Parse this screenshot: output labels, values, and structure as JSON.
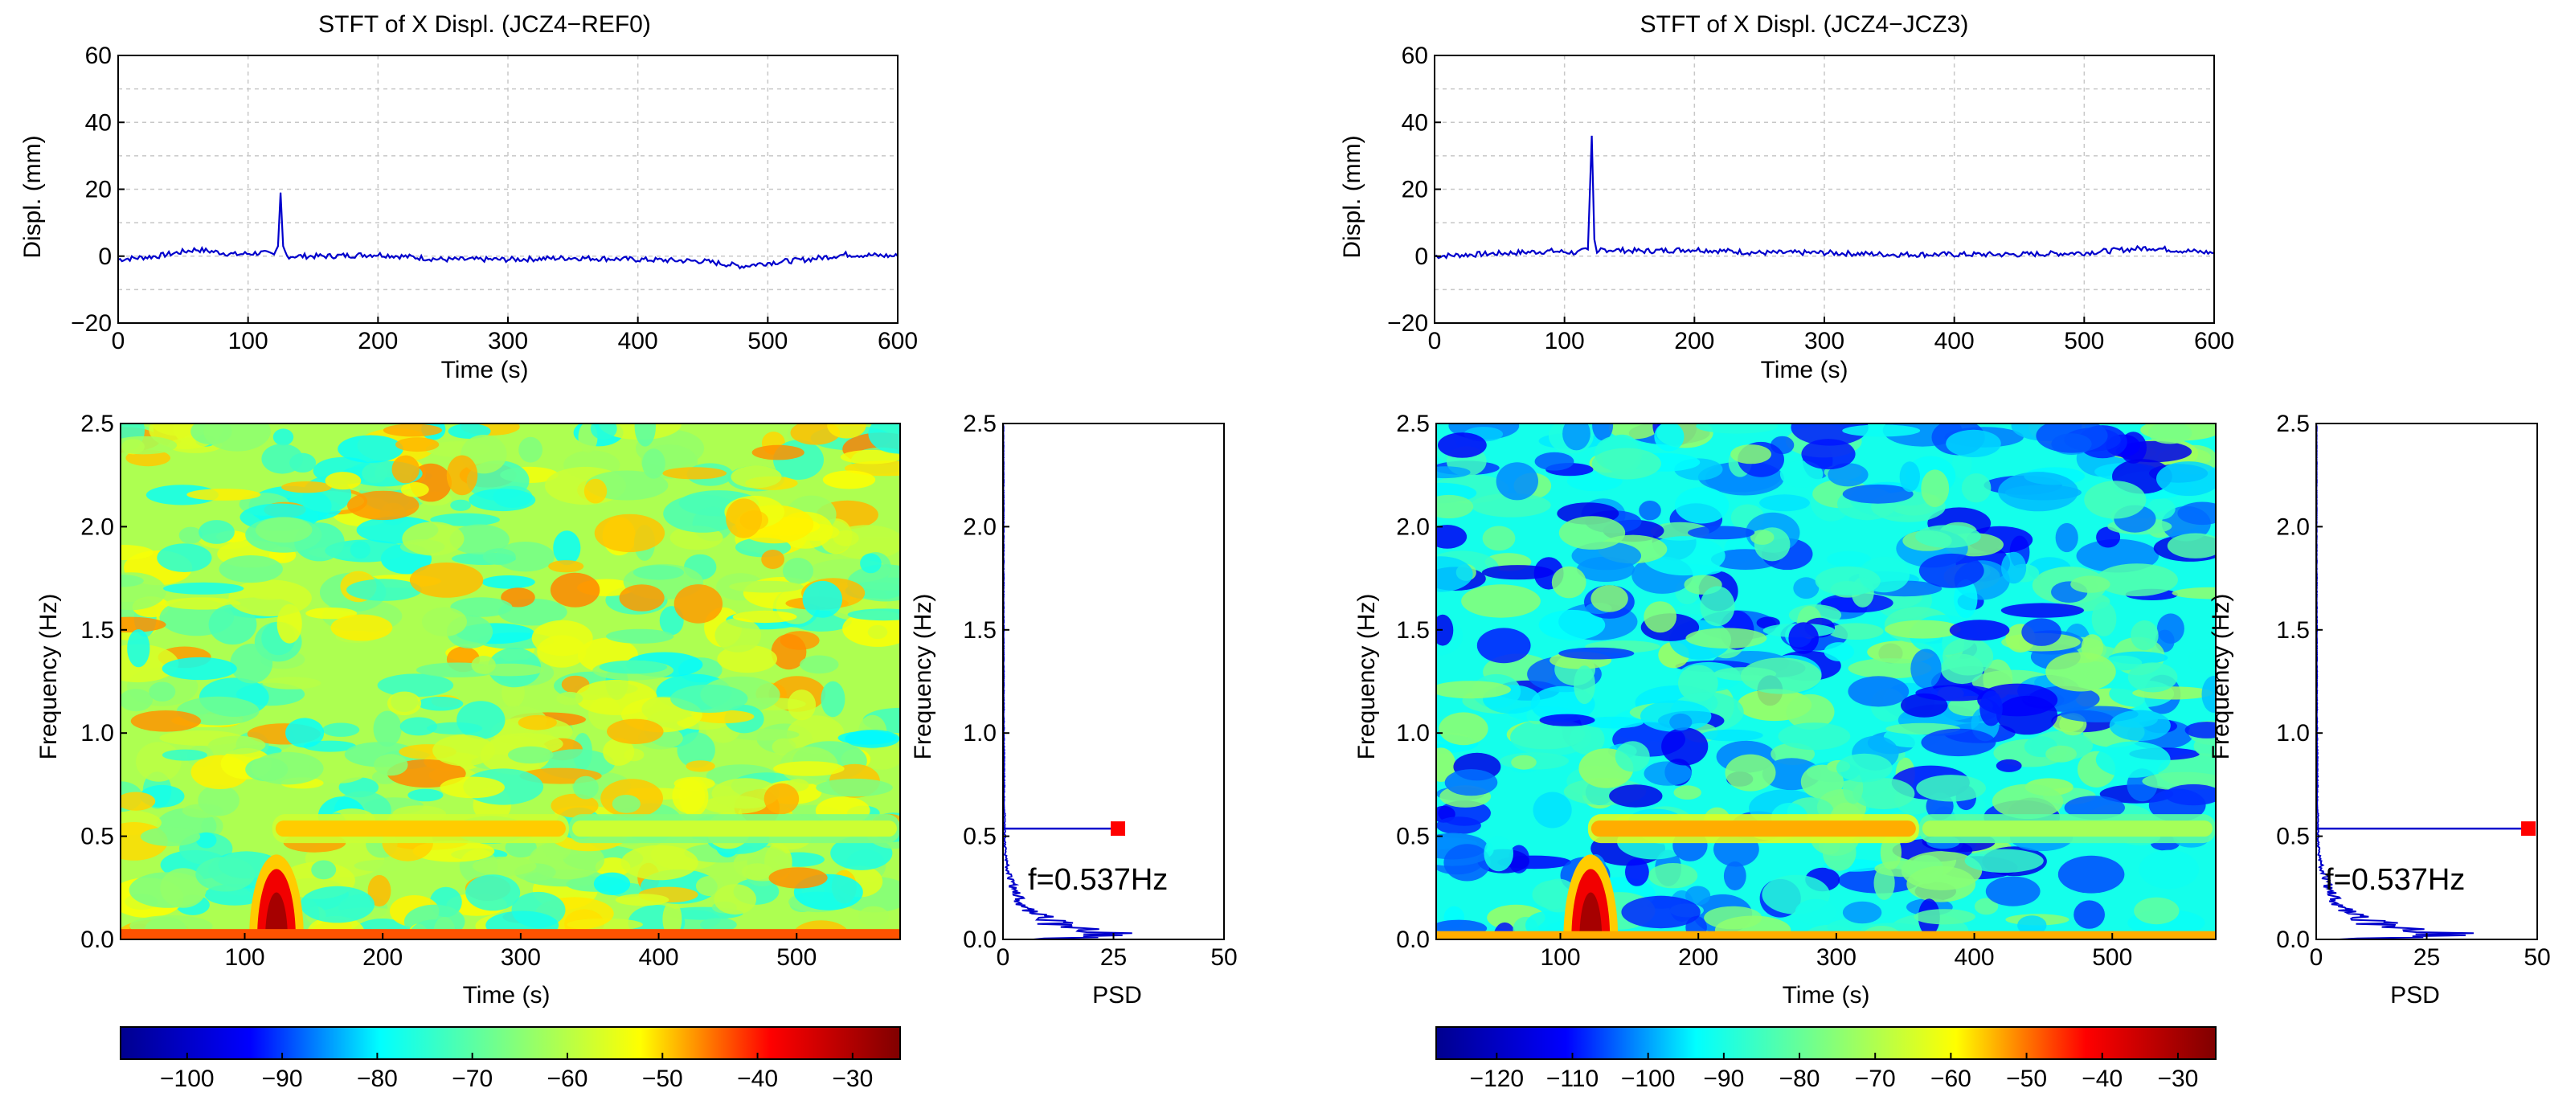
{
  "colormap": [
    "#00008f",
    "#0000ff",
    "#00ffff",
    "#7fff7f",
    "#ffff00",
    "#ff0000",
    "#800000"
  ],
  "chart_data": [
    {
      "id": "left-time",
      "type": "line",
      "title": "STFT of X Displ. (JCZ4−REF0)",
      "xlabel": "Time (s)",
      "ylabel": "Displ. (mm)",
      "xlim": [
        0,
        600
      ],
      "ylim": [
        -20,
        60
      ],
      "xticks": [
        "0",
        "100",
        "200",
        "300",
        "400",
        "500",
        "600"
      ],
      "yticks": [
        "−20",
        "0",
        "20",
        "40",
        "60"
      ],
      "grid": true,
      "line_color": "#0000cc",
      "series": [
        {
          "name": "X displacement",
          "x": [
            0,
            30,
            60,
            90,
            110,
            120,
            123,
            125,
            127,
            130,
            160,
            200,
            250,
            300,
            350,
            400,
            450,
            480,
            500,
            530,
            560,
            600
          ],
          "y": [
            -1,
            0,
            2,
            0.5,
            1,
            0.5,
            3,
            19,
            3,
            0,
            0,
            0.5,
            -1,
            -1,
            -0.5,
            -1,
            -1.5,
            -3,
            -2,
            -1,
            0.5,
            0
          ]
        }
      ]
    },
    {
      "id": "right-time",
      "type": "line",
      "title": "STFT of X Displ. (JCZ4−JCZ3)",
      "xlabel": "Time (s)",
      "ylabel": "Displ. (mm)",
      "xlim": [
        0,
        600
      ],
      "ylim": [
        -20,
        60
      ],
      "xticks": [
        "0",
        "100",
        "200",
        "300",
        "400",
        "500",
        "600"
      ],
      "yticks": [
        "−20",
        "0",
        "20",
        "40",
        "60"
      ],
      "grid": true,
      "line_color": "#0000cc",
      "series": [
        {
          "name": "X displacement",
          "x": [
            0,
            30,
            60,
            90,
            110,
            118,
            121,
            123,
            125,
            128,
            160,
            200,
            250,
            300,
            350,
            400,
            450,
            500,
            550,
            580,
            600
          ],
          "y": [
            0,
            0.5,
            1,
            1.5,
            1,
            2,
            36,
            5,
            1,
            2,
            1.5,
            2,
            1,
            1,
            0.5,
            0.5,
            0.5,
            1,
            2.5,
            1.5,
            1
          ]
        }
      ]
    },
    {
      "id": "left-spectrogram",
      "type": "heatmap",
      "xlabel": "Time (s)",
      "ylabel": "Frequency (Hz)",
      "xlim": [
        10,
        575
      ],
      "ylim": [
        0,
        2.5
      ],
      "xticks": [
        "100",
        "200",
        "300",
        "400",
        "500"
      ],
      "yticks": [
        "0.0",
        "0.5",
        "1.0",
        "1.5",
        "2.0",
        "2.5"
      ],
      "background_level": 0.56,
      "features": [
        {
          "kind": "band",
          "freq": 0.537,
          "t_start": 120,
          "t_end": 335,
          "level": 0.7
        },
        {
          "kind": "band",
          "freq": 0.537,
          "t_start": 335,
          "t_end": 575,
          "level": 0.6
        },
        {
          "kind": "burst",
          "t_center": 123,
          "f_top": 0.38,
          "level": 0.95
        },
        {
          "kind": "low-frequency floor",
          "f_top": 0.05,
          "level": 0.78
        }
      ]
    },
    {
      "id": "right-spectrogram",
      "type": "heatmap",
      "xlabel": "Time (s)",
      "ylabel": "Frequency (Hz)",
      "xlim": [
        10,
        575
      ],
      "ylim": [
        0,
        2.5
      ],
      "xticks": [
        "100",
        "200",
        "300",
        "400",
        "500"
      ],
      "yticks": [
        "0.0",
        "0.5",
        "1.0",
        "1.5",
        "2.0",
        "2.5"
      ],
      "background_level": 0.36,
      "features": [
        {
          "kind": "band",
          "freq": 0.537,
          "t_start": 120,
          "t_end": 360,
          "level": 0.72
        },
        {
          "kind": "band",
          "freq": 0.537,
          "t_start": 360,
          "t_end": 575,
          "level": 0.55
        },
        {
          "kind": "burst",
          "t_center": 122,
          "f_top": 0.38,
          "level": 0.95
        },
        {
          "kind": "low-frequency floor",
          "f_top": 0.04,
          "level": 0.72
        }
      ]
    },
    {
      "id": "left-psd",
      "type": "line",
      "xlabel": "PSD",
      "ylabel": "Frequency (Hz)",
      "xlim": [
        0,
        50
      ],
      "ylim": [
        0,
        2.5
      ],
      "xticks": [
        "0",
        "25",
        "50"
      ],
      "yticks": [
        "0.0",
        "0.5",
        "1.0",
        "1.5",
        "2.0",
        "2.5"
      ],
      "series": [
        {
          "name": "PSD",
          "freq": [
            0.0,
            0.02,
            0.05,
            0.08,
            0.1,
            0.13,
            0.16,
            0.2,
            0.25,
            0.3,
            0.35,
            0.4,
            0.5,
            0.7,
            1.0,
            1.5,
            2.0,
            2.5
          ],
          "psd": [
            8,
            24,
            16,
            12,
            10,
            7,
            5,
            3.5,
            2.5,
            1.5,
            1,
            0.6,
            0.4,
            0.3,
            0.2,
            0.15,
            0.15,
            0.1
          ]
        }
      ],
      "peak": {
        "freq": 0.537,
        "psd": 26,
        "label": "f=0.537Hz",
        "color": "#ff0000"
      }
    },
    {
      "id": "right-psd",
      "type": "line",
      "xlabel": "PSD",
      "ylabel": "Frequency (Hz)",
      "xlim": [
        0,
        50
      ],
      "ylim": [
        0,
        2.5
      ],
      "xticks": [
        "0",
        "25",
        "50"
      ],
      "yticks": [
        "0.0",
        "0.5",
        "1.0",
        "1.5",
        "2.0",
        "2.5"
      ],
      "series": [
        {
          "name": "PSD",
          "freq": [
            0.0,
            0.02,
            0.05,
            0.08,
            0.1,
            0.13,
            0.16,
            0.2,
            0.25,
            0.3,
            0.35,
            0.4,
            0.5,
            0.7,
            1.0,
            1.5,
            2.0,
            2.5
          ],
          "psd": [
            6,
            30,
            18,
            14,
            10,
            8,
            6,
            4,
            3,
            2,
            1.2,
            0.7,
            0.4,
            0.3,
            0.2,
            0.15,
            0.1,
            0.1
          ]
        }
      ],
      "peak": {
        "freq": 0.537,
        "psd": 48,
        "label": "f=0.537Hz",
        "color": "#ff0000"
      }
    },
    {
      "id": "left-colorbar",
      "type": "colorbar",
      "range": [
        -107,
        -25
      ],
      "ticks": [
        {
          "value": -100,
          "label": "−100"
        },
        {
          "value": -90,
          "label": "−90"
        },
        {
          "value": -80,
          "label": "−80"
        },
        {
          "value": -70,
          "label": "−70"
        },
        {
          "value": -60,
          "label": "−60"
        },
        {
          "value": -50,
          "label": "−50"
        },
        {
          "value": -40,
          "label": "−40"
        },
        {
          "value": -30,
          "label": "−30"
        }
      ]
    },
    {
      "id": "right-colorbar",
      "type": "colorbar",
      "range": [
        -128,
        -25
      ],
      "ticks": [
        {
          "value": -120,
          "label": "−120"
        },
        {
          "value": -110,
          "label": "−110"
        },
        {
          "value": -100,
          "label": "−100"
        },
        {
          "value": -90,
          "label": "−90"
        },
        {
          "value": -80,
          "label": "−80"
        },
        {
          "value": -70,
          "label": "−70"
        },
        {
          "value": -60,
          "label": "−60"
        },
        {
          "value": -50,
          "label": "−50"
        },
        {
          "value": -40,
          "label": "−40"
        },
        {
          "value": -30,
          "label": "−30"
        }
      ]
    }
  ]
}
